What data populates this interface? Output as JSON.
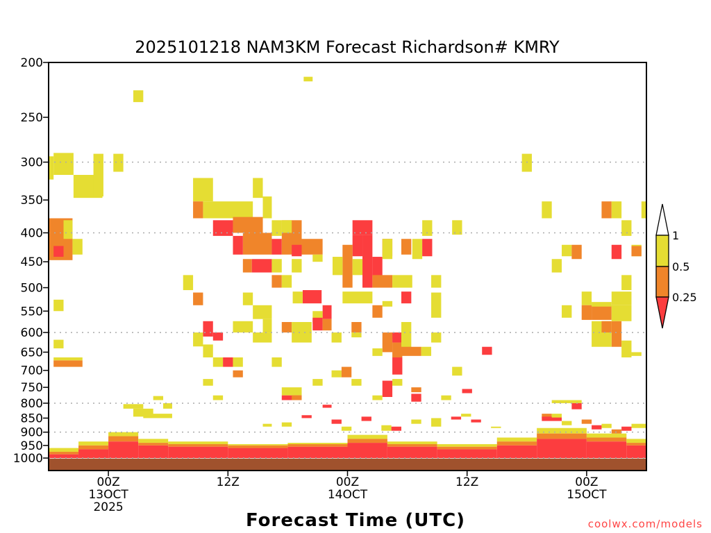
{
  "chart_data": {
    "type": "heatmap",
    "title": "2025101218 NAM3KM Forecast Richardson# KMRY",
    "xlabel": "Forecast Time (UTC)",
    "ylabel": "",
    "credit": "coolwx.com/models",
    "x_unit": "forecast hour from 2025-10-12 18Z",
    "xlim": [
      0,
      60
    ],
    "ylim": [
      200,
      1052
    ],
    "y_scale": "log",
    "y_ticks": [
      200,
      250,
      300,
      350,
      400,
      450,
      500,
      550,
      600,
      650,
      700,
      750,
      800,
      850,
      900,
      950,
      1000
    ],
    "y_gridlines": [
      300,
      400,
      600,
      800,
      900,
      1000
    ],
    "x_ticks": [
      {
        "hour": 6,
        "lines": [
          "00Z",
          "13OCT",
          "2025"
        ]
      },
      {
        "hour": 18,
        "lines": [
          "12Z"
        ]
      },
      {
        "hour": 30,
        "lines": [
          "00Z",
          "14OCT"
        ]
      },
      {
        "hour": 42,
        "lines": [
          "12Z"
        ]
      },
      {
        "hour": 54,
        "lines": [
          "00Z",
          "15OCT"
        ]
      }
    ],
    "colors": {
      "red": "#fc3d3f",
      "orange": "#f0852a",
      "yellow": "#e5dd33",
      "ground": "#a0522d"
    },
    "legend": {
      "placement": "right",
      "bins": [
        {
          "color": "red",
          "range": "< 0.25"
        },
        {
          "color": "orange",
          "range": "0.25 - 0.5"
        },
        {
          "color": "yellow",
          "range": "0.5 - 1"
        },
        {
          "color": "none",
          "range": "> 1"
        }
      ],
      "labels": [
        "1",
        "0.5",
        "0.25"
      ]
    },
    "ground_top_hpa": 1002,
    "boundary_layer": [
      {
        "hours": [
          0,
          3
        ],
        "red_top": 985,
        "orange_top": 975,
        "yellow_top": 960
      },
      {
        "hours": [
          3,
          6
        ],
        "red_top": 965,
        "orange_top": 950,
        "yellow_top": 935
      },
      {
        "hours": [
          6,
          9
        ],
        "red_top": 935,
        "orange_top": 915,
        "yellow_top": 900
      },
      {
        "hours": [
          9,
          12
        ],
        "red_top": 950,
        "orange_top": 940,
        "yellow_top": 925
      },
      {
        "hours": [
          12,
          18
        ],
        "red_top": 955,
        "orange_top": 945,
        "yellow_top": 935
      },
      {
        "hours": [
          18,
          24
        ],
        "red_top": 960,
        "orange_top": 950,
        "yellow_top": 945
      },
      {
        "hours": [
          24,
          30
        ],
        "red_top": 955,
        "orange_top": 945,
        "yellow_top": 940
      },
      {
        "hours": [
          30,
          34
        ],
        "red_top": 940,
        "orange_top": 925,
        "yellow_top": 910
      },
      {
        "hours": [
          34,
          39
        ],
        "red_top": 955,
        "orange_top": 945,
        "yellow_top": 935
      },
      {
        "hours": [
          39,
          45
        ],
        "red_top": 965,
        "orange_top": 955,
        "yellow_top": 945
      },
      {
        "hours": [
          45,
          49
        ],
        "red_top": 950,
        "orange_top": 935,
        "yellow_top": 920
      },
      {
        "hours": [
          49,
          54
        ],
        "red_top": 925,
        "orange_top": 905,
        "yellow_top": 885
      },
      {
        "hours": [
          54,
          58
        ],
        "red_top": 935,
        "orange_top": 920,
        "yellow_top": 905
      },
      {
        "hours": [
          58,
          60
        ],
        "red_top": 950,
        "orange_top": 940,
        "yellow_top": 925
      }
    ],
    "cells": [
      [
        "y",
        0.5,
        2.5,
        289,
        316
      ],
      [
        "y",
        0,
        0.5,
        293,
        322
      ],
      [
        "y",
        2.5,
        5.4,
        316,
        347
      ],
      [
        "y",
        4.5,
        5.5,
        290,
        345
      ],
      [
        "y",
        6.5,
        7.5,
        290,
        312
      ],
      [
        "y",
        8.5,
        9.5,
        224,
        235
      ],
      [
        "y",
        25.6,
        26.5,
        212,
        216
      ],
      [
        "o",
        0,
        2.4,
        377,
        447
      ],
      [
        "r",
        0.5,
        1.5,
        422,
        441
      ],
      [
        "y",
        1.5,
        2.4,
        380,
        410
      ],
      [
        "y",
        2.4,
        3.4,
        410,
        437
      ],
      [
        "y",
        0.5,
        1.5,
        525,
        550
      ],
      [
        "y",
        0.5,
        1.5,
        618,
        640
      ],
      [
        "o",
        0.5,
        3.4,
        672,
        690
      ],
      [
        "y",
        0.5,
        3.4,
        664,
        672
      ],
      [
        "y",
        47.5,
        48.5,
        290,
        312
      ],
      [
        "y",
        14.5,
        16.5,
        320,
        352
      ],
      [
        "o",
        14.5,
        15.5,
        352,
        377
      ],
      [
        "y",
        15.5,
        20.5,
        352,
        377
      ],
      [
        "y",
        20.5,
        21.5,
        320,
        347
      ],
      [
        "y",
        21.5,
        22.4,
        345,
        377
      ],
      [
        "r",
        16.5,
        18.5,
        380,
        405
      ],
      [
        "o",
        18.5,
        21.5,
        375,
        400
      ],
      [
        "o",
        19.5,
        22.4,
        400,
        437
      ],
      [
        "r",
        18.5,
        19.5,
        405,
        437
      ],
      [
        "r",
        22.4,
        23.4,
        410,
        437
      ],
      [
        "o",
        23.4,
        25.4,
        380,
        437
      ],
      [
        "r",
        24.4,
        25.4,
        420,
        440
      ],
      [
        "o",
        25.4,
        27.5,
        410,
        437
      ],
      [
        "y",
        23.4,
        24.4,
        380,
        400
      ],
      [
        "y",
        22.4,
        23.4,
        380,
        405
      ],
      [
        "o",
        19.5,
        20.4,
        445,
        470
      ],
      [
        "r",
        20.4,
        22.4,
        445,
        470
      ],
      [
        "y",
        22.4,
        23.4,
        445,
        470
      ],
      [
        "y",
        24.4,
        25.4,
        445,
        470
      ],
      [
        "y",
        26.5,
        27.5,
        437,
        450
      ],
      [
        "o",
        22.4,
        23.4,
        475,
        500
      ],
      [
        "y",
        23.4,
        24.4,
        475,
        500
      ],
      [
        "r",
        30.5,
        32.5,
        380,
        403
      ],
      [
        "r",
        30.5,
        31.5,
        403,
        440
      ],
      [
        "r",
        31.5,
        32.5,
        403,
        500
      ],
      [
        "r",
        32.5,
        33.5,
        441,
        477
      ],
      [
        "o",
        29.5,
        30.5,
        420,
        500
      ],
      [
        "y",
        28.5,
        29.5,
        441,
        475
      ],
      [
        "y",
        30.5,
        31.5,
        445,
        475
      ],
      [
        "r",
        33.5,
        34.5,
        410,
        440
      ],
      [
        "o",
        32.5,
        34.5,
        475,
        500
      ],
      [
        "y",
        34.5,
        36.5,
        475,
        500
      ],
      [
        "y",
        36.5,
        37.5,
        410,
        445
      ],
      [
        "r",
        37.5,
        38.5,
        410,
        440
      ],
      [
        "y",
        37.5,
        38.5,
        380,
        405
      ],
      [
        "y",
        40.5,
        41.5,
        380,
        403
      ],
      [
        "o",
        35.4,
        36.4,
        410,
        437
      ],
      [
        "y",
        38.4,
        39.4,
        475,
        500
      ],
      [
        "y",
        33.5,
        34.5,
        410,
        445
      ],
      [
        "y",
        13.5,
        14.5,
        475,
        505
      ],
      [
        "o",
        14.5,
        15.5,
        510,
        537
      ],
      [
        "y",
        19.5,
        20.5,
        510,
        537
      ],
      [
        "y",
        20.5,
        22.4,
        537,
        568
      ],
      [
        "y",
        21.5,
        22.4,
        568,
        600
      ],
      [
        "r",
        25.5,
        27.4,
        505,
        533
      ],
      [
        "y",
        24.5,
        25.5,
        508,
        533
      ],
      [
        "y",
        29.5,
        32.5,
        508,
        533
      ],
      [
        "o",
        32.5,
        33.5,
        537,
        565
      ],
      [
        "r",
        35.4,
        36.4,
        508,
        533
      ],
      [
        "y",
        38.4,
        39.4,
        510,
        565
      ],
      [
        "y",
        33.5,
        34.5,
        528,
        540
      ],
      [
        "r",
        27.5,
        28.4,
        537,
        568
      ],
      [
        "y",
        26.5,
        27.5,
        550,
        580
      ],
      [
        "r",
        26.5,
        27.5,
        565,
        595
      ],
      [
        "o",
        27.5,
        28.4,
        568,
        595
      ],
      [
        "r",
        15.5,
        16.5,
        573,
        610
      ],
      [
        "r",
        16.5,
        17.5,
        600,
        620
      ],
      [
        "y",
        14.5,
        15.5,
        600,
        635
      ],
      [
        "y",
        15.5,
        16.5,
        630,
        664
      ],
      [
        "y",
        18.5,
        20.5,
        573,
        600
      ],
      [
        "y",
        20.5,
        22.4,
        600,
        625
      ],
      [
        "o",
        23.4,
        24.4,
        575,
        600
      ],
      [
        "y",
        24.4,
        26.4,
        575,
        625
      ],
      [
        "y",
        28.4,
        29.4,
        600,
        625
      ],
      [
        "o",
        30.4,
        31.4,
        575,
        600
      ],
      [
        "y",
        30.4,
        31.4,
        600,
        612
      ],
      [
        "o",
        33.5,
        34.5,
        600,
        650
      ],
      [
        "y",
        34.5,
        35.5,
        600,
        615
      ],
      [
        "r",
        34.5,
        35.5,
        600,
        625
      ],
      [
        "o",
        34.5,
        35.5,
        625,
        664
      ],
      [
        "y",
        35.4,
        36.4,
        575,
        640
      ],
      [
        "o",
        35.4,
        37.4,
        636,
        660
      ],
      [
        "y",
        37.4,
        38.4,
        636,
        660
      ],
      [
        "y",
        38.4,
        39.4,
        600,
        625
      ],
      [
        "y",
        32.5,
        33.5,
        640,
        660
      ],
      [
        "y",
        16.5,
        17.5,
        664,
        690
      ],
      [
        "r",
        17.5,
        18.5,
        664,
        690
      ],
      [
        "y",
        18.5,
        19.5,
        664,
        690
      ],
      [
        "o",
        18.5,
        19.5,
        700,
        720
      ],
      [
        "y",
        15.5,
        16.5,
        725,
        745
      ],
      [
        "y",
        22.4,
        23.4,
        664,
        690
      ],
      [
        "y",
        28.4,
        29.4,
        700,
        720
      ],
      [
        "o",
        29.4,
        30.4,
        690,
        720
      ],
      [
        "y",
        30.4,
        31.4,
        725,
        745
      ],
      [
        "r",
        34.5,
        35.5,
        664,
        712
      ],
      [
        "r",
        33.5,
        34.5,
        730,
        780
      ],
      [
        "y",
        34.5,
        35.5,
        725,
        745
      ],
      [
        "y",
        40.5,
        41.5,
        690,
        715
      ],
      [
        "r",
        43.5,
        44.5,
        636,
        657
      ],
      [
        "y",
        23.4,
        25.4,
        750,
        775
      ],
      [
        "r",
        23.4,
        25.4,
        775,
        790
      ],
      [
        "o",
        24.4,
        25.4,
        775,
        790
      ],
      [
        "r",
        27.5,
        28.4,
        805,
        815
      ],
      [
        "y",
        26.5,
        27.5,
        725,
        745
      ],
      [
        "y",
        32.5,
        33.5,
        775,
        790
      ],
      [
        "r",
        36.4,
        37.4,
        770,
        795
      ],
      [
        "o",
        36.4,
        37.4,
        750,
        765
      ],
      [
        "r",
        41.5,
        42.5,
        755,
        768
      ],
      [
        "y",
        39.4,
        40.4,
        775,
        790
      ],
      [
        "y",
        16.5,
        17.5,
        775,
        790
      ],
      [
        "y",
        10.5,
        11.5,
        777,
        790
      ],
      [
        "y",
        7.5,
        9.5,
        803,
        818
      ],
      [
        "y",
        8.5,
        10.5,
        818,
        845
      ],
      [
        "y",
        9.5,
        12.4,
        835,
        850
      ],
      [
        "y",
        11.5,
        12.4,
        800,
        818
      ],
      [
        "y",
        49.5,
        50.5,
        352,
        377
      ],
      [
        "o",
        55.5,
        56.5,
        352,
        377
      ],
      [
        "y",
        56.5,
        57.5,
        352,
        377
      ],
      [
        "y",
        57.5,
        58.5,
        380,
        405
      ],
      [
        "y",
        58.5,
        59.5,
        420,
        440
      ],
      [
        "o",
        58.5,
        59.5,
        422,
        440
      ],
      [
        "y",
        59.5,
        60,
        352,
        377
      ],
      [
        "y",
        50.5,
        51.5,
        445,
        470
      ],
      [
        "y",
        51.5,
        52.5,
        420,
        440
      ],
      [
        "o",
        52.5,
        53.5,
        420,
        445
      ],
      [
        "r",
        56.5,
        57.5,
        420,
        445
      ],
      [
        "y",
        57.5,
        58.5,
        475,
        505
      ],
      [
        "y",
        53.5,
        54.5,
        508,
        537
      ],
      [
        "o",
        53.5,
        54.5,
        537,
        570
      ],
      [
        "y",
        51.5,
        52.5,
        537,
        565
      ],
      [
        "o",
        54.5,
        56.5,
        537,
        570
      ],
      [
        "y",
        54.5,
        56.5,
        530,
        540
      ],
      [
        "o",
        56.5,
        57.5,
        573,
        636
      ],
      [
        "y",
        56.5,
        58.5,
        508,
        537
      ],
      [
        "y",
        56.5,
        58.5,
        537,
        573
      ],
      [
        "y",
        54.5,
        56.5,
        573,
        636
      ],
      [
        "o",
        55.5,
        56.5,
        573,
        600
      ],
      [
        "y",
        57.5,
        58.5,
        620,
        664
      ],
      [
        "y",
        58.5,
        59.5,
        650,
        660
      ],
      [
        "y",
        50.5,
        53.5,
        790,
        800
      ],
      [
        "r",
        52.5,
        53.5,
        800,
        820
      ],
      [
        "o",
        49.5,
        50.5,
        835,
        850
      ],
      [
        "r",
        49.5,
        51.5,
        845,
        860
      ],
      [
        "y",
        50.5,
        51.5,
        835,
        848
      ],
      [
        "o",
        53.5,
        54.5,
        855,
        870
      ],
      [
        "y",
        51.5,
        52.5,
        860,
        875
      ],
      [
        "r",
        54.5,
        55.5,
        875,
        890
      ],
      [
        "y",
        55.5,
        56.5,
        870,
        885
      ],
      [
        "r",
        57.5,
        58.5,
        880,
        895
      ],
      [
        "y",
        58.5,
        60,
        870,
        885
      ],
      [
        "o",
        56.5,
        57.5,
        890,
        905
      ],
      [
        "y",
        38.4,
        39.4,
        850,
        880
      ],
      [
        "r",
        40.4,
        41.4,
        845,
        855
      ],
      [
        "y",
        41.4,
        42.4,
        835,
        845
      ],
      [
        "r",
        42.4,
        43.4,
        855,
        865
      ],
      [
        "y",
        44.4,
        45.4,
        880,
        885
      ],
      [
        "r",
        28.4,
        29.4,
        855,
        870
      ],
      [
        "y",
        29.4,
        30.4,
        880,
        895
      ],
      [
        "r",
        31.4,
        32.4,
        845,
        860
      ],
      [
        "y",
        33.4,
        34.4,
        875,
        895
      ],
      [
        "r",
        34.4,
        35.4,
        880,
        895
      ],
      [
        "y",
        21.5,
        22.4,
        870,
        880
      ],
      [
        "y",
        36.4,
        37.4,
        855,
        870
      ],
      [
        "r",
        25.4,
        26.4,
        840,
        850
      ],
      [
        "y",
        23.4,
        24.4,
        865,
        880
      ]
    ]
  }
}
